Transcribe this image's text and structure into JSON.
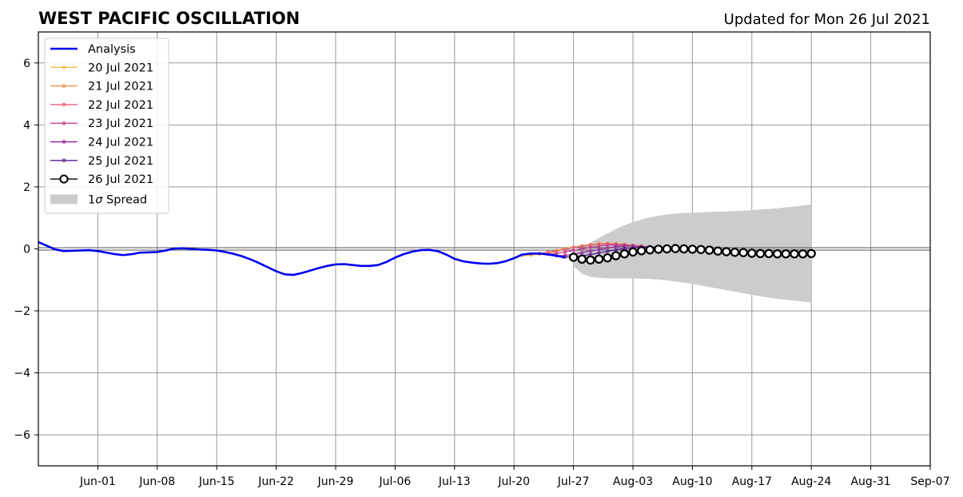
{
  "chart_data": {
    "type": "line",
    "title": "WEST PACIFIC OSCILLATION",
    "subtitle": "Updated for Mon 26 Jul 2021",
    "xlabel": "",
    "ylabel": "",
    "ylim": [
      -7,
      7
    ],
    "xlim": [
      "2021-05-25",
      "2021-09-07"
    ],
    "yticks": [
      -6,
      -4,
      -2,
      0,
      2,
      4,
      6
    ],
    "ytick_labels": [
      "−6",
      "−4",
      "−2",
      "0",
      "2",
      "4",
      "6"
    ],
    "xticks": [
      "2021-06-01",
      "2021-06-08",
      "2021-06-15",
      "2021-06-22",
      "2021-06-29",
      "2021-07-06",
      "2021-07-13",
      "2021-07-20",
      "2021-07-27",
      "2021-08-03",
      "2021-08-10",
      "2021-08-17",
      "2021-08-24",
      "2021-08-31",
      "2021-09-07"
    ],
    "xtick_labels": [
      "Jun-01",
      "Jun-08",
      "Jun-15",
      "Jun-22",
      "Jun-29",
      "Jul-06",
      "Jul-13",
      "Jul-20",
      "Jul-27",
      "Aug-03",
      "Aug-10",
      "Aug-17",
      "Aug-24",
      "Aug-31",
      "Sep-07"
    ],
    "grid": true,
    "zero_line": true,
    "legend_position": "upper-left",
    "analysis": {
      "name": "Analysis",
      "color": "#0000ee",
      "x": [
        "2021-05-25",
        "2021-05-26",
        "2021-05-27",
        "2021-05-28",
        "2021-05-29",
        "2021-05-30",
        "2021-05-31",
        "2021-06-01",
        "2021-06-02",
        "2021-06-03",
        "2021-06-04",
        "2021-06-05",
        "2021-06-06",
        "2021-06-07",
        "2021-06-08",
        "2021-06-09",
        "2021-06-10",
        "2021-06-11",
        "2021-06-12",
        "2021-06-13",
        "2021-06-14",
        "2021-06-15",
        "2021-06-16",
        "2021-06-17",
        "2021-06-18",
        "2021-06-19",
        "2021-06-20",
        "2021-06-21",
        "2021-06-22",
        "2021-06-23",
        "2021-06-24",
        "2021-06-25",
        "2021-06-26",
        "2021-06-27",
        "2021-06-28",
        "2021-06-29",
        "2021-06-30",
        "2021-07-01",
        "2021-07-02",
        "2021-07-03",
        "2021-07-04",
        "2021-07-05",
        "2021-07-06",
        "2021-07-07",
        "2021-07-08",
        "2021-07-09",
        "2021-07-10",
        "2021-07-11",
        "2021-07-12",
        "2021-07-13",
        "2021-07-14",
        "2021-07-15",
        "2021-07-16",
        "2021-07-17",
        "2021-07-18",
        "2021-07-19",
        "2021-07-20",
        "2021-07-21",
        "2021-07-22",
        "2021-07-23",
        "2021-07-24",
        "2021-07-25",
        "2021-07-26"
      ],
      "y": [
        0.22,
        0.1,
        -0.02,
        -0.07,
        -0.06,
        -0.05,
        -0.04,
        -0.07,
        -0.12,
        -0.17,
        -0.2,
        -0.17,
        -0.12,
        -0.11,
        -0.1,
        -0.05,
        0.01,
        0.02,
        0.0,
        -0.02,
        -0.03,
        -0.05,
        -0.1,
        -0.16,
        -0.24,
        -0.34,
        -0.46,
        -0.59,
        -0.72,
        -0.82,
        -0.84,
        -0.78,
        -0.7,
        -0.62,
        -0.55,
        -0.5,
        -0.49,
        -0.52,
        -0.55,
        -0.55,
        -0.52,
        -0.42,
        -0.28,
        -0.17,
        -0.09,
        -0.04,
        -0.03,
        -0.07,
        -0.18,
        -0.32,
        -0.4,
        -0.44,
        -0.47,
        -0.48,
        -0.46,
        -0.4,
        -0.3,
        -0.18,
        -0.15,
        -0.15,
        -0.18,
        -0.22,
        -0.28
      ]
    },
    "series": [
      {
        "name": "20 Jul 2021",
        "color": "#f8b84a",
        "start": "2021-07-21",
        "values": [
          -0.22,
          -0.2,
          -0.17,
          -0.12,
          -0.06,
          0.0,
          0.05,
          0.1,
          0.13,
          0.15,
          0.16,
          0.15,
          0.13,
          0.11
        ]
      },
      {
        "name": "21 Jul 2021",
        "color": "#ef8f47",
        "start": "2021-07-22",
        "values": [
          -0.17,
          -0.15,
          -0.1,
          -0.05,
          0.01,
          0.06,
          0.1,
          0.14,
          0.17,
          0.18,
          0.17,
          0.15,
          0.12,
          0.1
        ]
      },
      {
        "name": "22 Jul 2021",
        "color": "#e0647a",
        "start": "2021-07-23",
        "values": [
          -0.15,
          -0.13,
          -0.08,
          -0.02,
          0.04,
          0.08,
          0.12,
          0.15,
          0.16,
          0.15,
          0.13,
          0.11,
          0.09,
          0.07
        ]
      },
      {
        "name": "23 Jul 2021",
        "color": "#c43e92",
        "start": "2021-07-24",
        "values": [
          -0.17,
          -0.15,
          -0.1,
          -0.05,
          0.0,
          0.05,
          0.09,
          0.12,
          0.13,
          0.12,
          0.1,
          0.08,
          0.06,
          0.05
        ]
      },
      {
        "name": "24 Jul 2021",
        "color": "#9c2aa3",
        "start": "2021-07-25",
        "values": [
          -0.22,
          -0.21,
          -0.17,
          -0.12,
          -0.07,
          -0.02,
          0.03,
          0.07,
          0.09,
          0.09,
          0.08,
          0.06,
          0.04,
          0.03
        ]
      },
      {
        "name": "25 Jul 2021",
        "color": "#5a1a8e",
        "start": "2021-07-26",
        "values": [
          -0.26,
          -0.26,
          -0.22,
          -0.18,
          -0.13,
          -0.08,
          -0.03,
          0.01,
          0.04,
          0.05,
          0.05,
          0.04,
          0.03,
          0.02
        ]
      },
      {
        "name": "26 Jul 2021",
        "color": "#000000",
        "start": "2021-07-27",
        "values": [
          -0.27,
          -0.33,
          -0.36,
          -0.33,
          -0.29,
          -0.22,
          -0.16,
          -0.1,
          -0.06,
          -0.03,
          -0.01,
          0.0,
          0.01,
          0.0,
          -0.01,
          -0.02,
          -0.04,
          -0.07,
          -0.09,
          -0.11,
          -0.12,
          -0.14,
          -0.15,
          -0.15,
          -0.16,
          -0.16,
          -0.16,
          -0.16,
          -0.15
        ]
      }
    ],
    "spread": {
      "name": "1σ Spread",
      "label_prefix": "1",
      "label_sigma": "σ",
      "label_suffix": " Spread",
      "color": "#cccccc",
      "start": "2021-07-27",
      "upper": [
        -0.05,
        0.07,
        0.2,
        0.35,
        0.5,
        0.64,
        0.76,
        0.86,
        0.95,
        1.02,
        1.07,
        1.11,
        1.14,
        1.16,
        1.17,
        1.18,
        1.19,
        1.2,
        1.21,
        1.22,
        1.23,
        1.25,
        1.27,
        1.29,
        1.31,
        1.34,
        1.37,
        1.4,
        1.43
      ],
      "lower": [
        -0.55,
        -0.8,
        -0.9,
        -0.93,
        -0.95,
        -0.95,
        -0.95,
        -0.95,
        -0.96,
        -0.97,
        -0.99,
        -1.02,
        -1.05,
        -1.09,
        -1.13,
        -1.18,
        -1.23,
        -1.28,
        -1.33,
        -1.38,
        -1.43,
        -1.48,
        -1.53,
        -1.57,
        -1.61,
        -1.64,
        -1.67,
        -1.7,
        -1.73
      ]
    }
  }
}
